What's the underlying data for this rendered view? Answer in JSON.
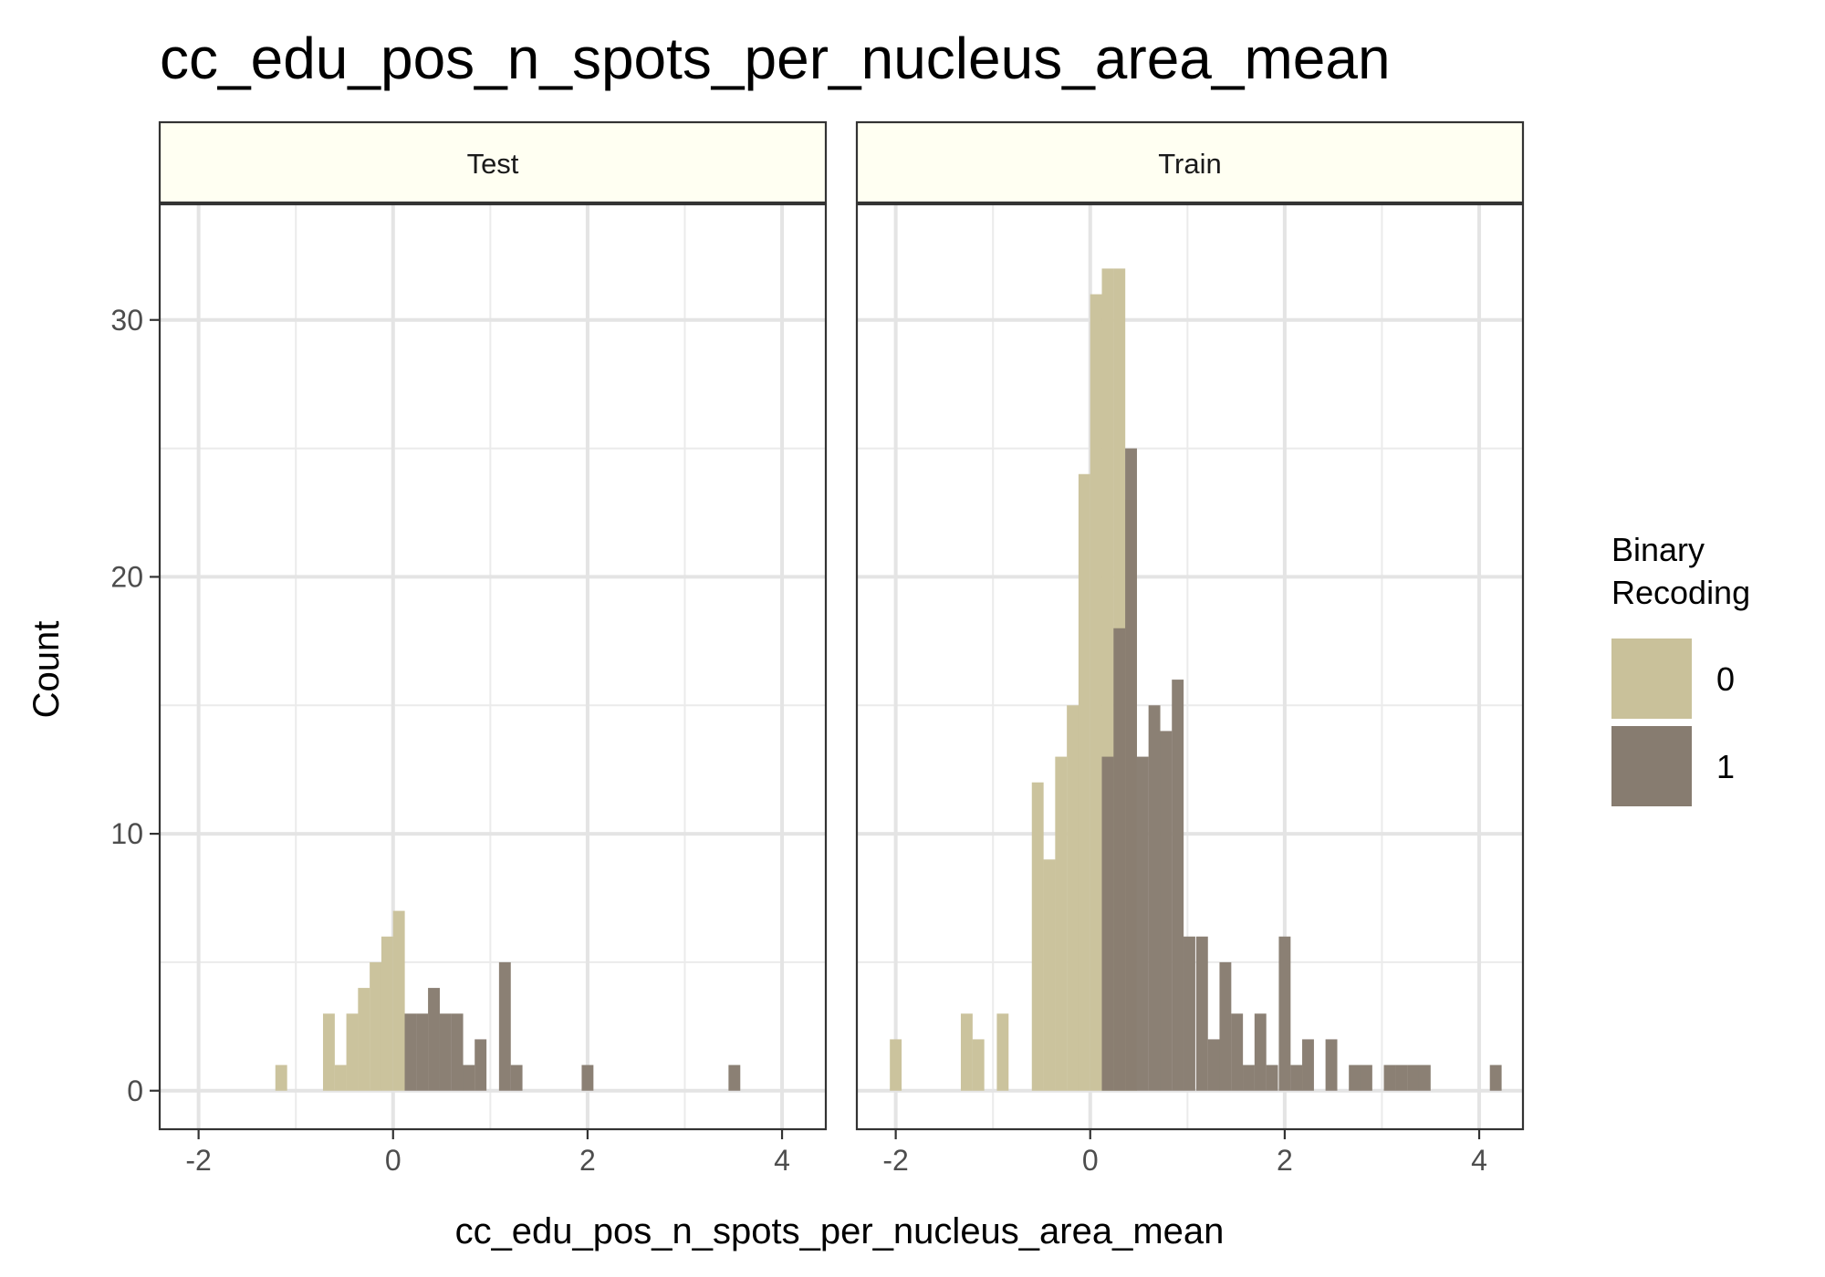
{
  "chart_data": {
    "type": "histogram",
    "title": "cc_edu_pos_n_spots_per_nucleus_area_mean",
    "xlabel": "cc_edu_pos_n_spots_per_nucleus_area_mean",
    "ylabel": "Count",
    "xlim": [
      -2.4,
      4.45
    ],
    "ylim": [
      -1.5,
      34.5
    ],
    "x_ticks": [
      -2,
      0,
      2,
      4
    ],
    "y_ticks": [
      0,
      10,
      20,
      30
    ],
    "x_tick_labels": [
      "-2",
      "0",
      "2",
      "4"
    ],
    "y_tick_labels": [
      "0",
      "10",
      "20",
      "30"
    ],
    "grid": true,
    "bin_width": 0.121,
    "legend": {
      "title_lines": [
        "Binary",
        "Recoding"
      ],
      "position": "right",
      "entries": [
        {
          "label": "0",
          "color": "#c9c19a"
        },
        {
          "label": "1",
          "color": "#877c70"
        }
      ]
    },
    "panels": [
      {
        "name": "Test",
        "series": [
          {
            "name": "0",
            "color": "#c9c19a",
            "bars": [
              [
                -1.15,
                1
              ],
              [
                -0.66,
                3
              ],
              [
                -0.54,
                1
              ],
              [
                -0.42,
                3
              ],
              [
                -0.3,
                4
              ],
              [
                -0.18,
                5
              ],
              [
                -0.06,
                6
              ],
              [
                0.06,
                7
              ]
            ]
          },
          {
            "name": "1",
            "color": "#877c70",
            "bars": [
              [
                0.18,
                3
              ],
              [
                0.3,
                3
              ],
              [
                0.42,
                4
              ],
              [
                0.54,
                3
              ],
              [
                0.66,
                3
              ],
              [
                0.78,
                1
              ],
              [
                0.9,
                2
              ],
              [
                1.15,
                5
              ],
              [
                1.27,
                1
              ],
              [
                2.0,
                1
              ],
              [
                3.51,
                1
              ]
            ]
          }
        ]
      },
      {
        "name": "Train",
        "series": [
          {
            "name": "0",
            "color": "#c9c19a",
            "bars": [
              [
                -2.0,
                2
              ],
              [
                -1.27,
                3
              ],
              [
                -1.15,
                2
              ],
              [
                -0.9,
                3
              ],
              [
                -0.54,
                12
              ],
              [
                -0.42,
                9
              ],
              [
                -0.3,
                13
              ],
              [
                -0.18,
                15
              ],
              [
                -0.06,
                24
              ],
              [
                0.06,
                31
              ],
              [
                0.18,
                32
              ],
              [
                0.3,
                32
              ],
              [
                0.42,
                23
              ]
            ]
          },
          {
            "name": "1",
            "color": "#877c70",
            "bars": [
              [
                0.18,
                13
              ],
              [
                0.3,
                18
              ],
              [
                0.42,
                25
              ],
              [
                0.54,
                13
              ],
              [
                0.66,
                15
              ],
              [
                0.78,
                14
              ],
              [
                0.9,
                16
              ],
              [
                1.02,
                6
              ],
              [
                1.15,
                6
              ],
              [
                1.27,
                2
              ],
              [
                1.39,
                5
              ],
              [
                1.51,
                3
              ],
              [
                1.63,
                1
              ],
              [
                1.75,
                3
              ],
              [
                1.87,
                1
              ],
              [
                2.0,
                6
              ],
              [
                2.12,
                1
              ],
              [
                2.24,
                2
              ],
              [
                2.48,
                2
              ],
              [
                2.72,
                1
              ],
              [
                2.84,
                1
              ],
              [
                3.08,
                1
              ],
              [
                3.2,
                1
              ],
              [
                3.32,
                1
              ],
              [
                3.44,
                1
              ],
              [
                4.17,
                1
              ]
            ]
          }
        ]
      }
    ]
  }
}
